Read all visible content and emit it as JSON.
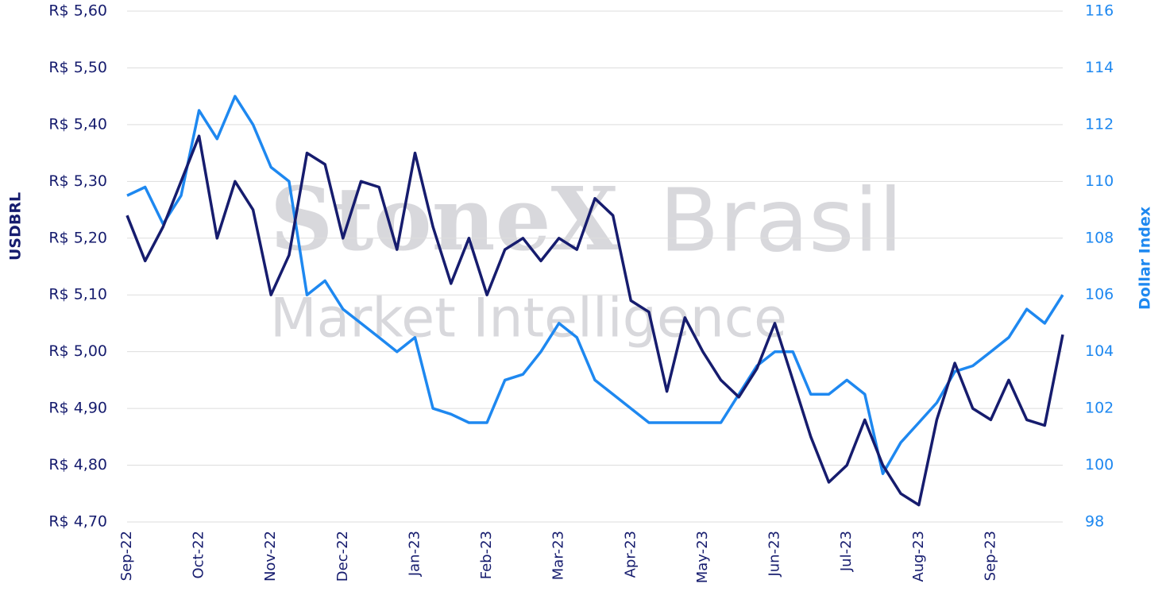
{
  "chart_data": {
    "type": "line",
    "y_axis_label": "USDBRL",
    "y2_axis_label": "Dollar Index",
    "watermark": {
      "brand": "StoneX",
      "suffix": "Brasil",
      "tagline": "Market Intelligence"
    },
    "categories": [
      "Sep-22",
      null,
      null,
      null,
      "Oct-22",
      null,
      null,
      null,
      "Nov-22",
      null,
      null,
      null,
      "Dec-22",
      null,
      null,
      null,
      "Jan-23",
      null,
      null,
      null,
      "Feb-23",
      null,
      null,
      null,
      "Mar-23",
      null,
      null,
      null,
      "Apr-23",
      null,
      null,
      null,
      "May-23",
      null,
      null,
      null,
      "Jun-23",
      null,
      null,
      null,
      "Jul-23",
      null,
      null,
      null,
      "Aug-23",
      null,
      null,
      null,
      "Sep-23",
      null,
      null,
      null,
      null
    ],
    "series": [
      {
        "color": "#161c6e",
        "values": [
          5.24,
          5.16,
          5.22,
          5.3,
          5.38,
          5.2,
          5.3,
          5.25,
          5.1,
          5.17,
          5.35,
          5.33,
          5.2,
          5.3,
          5.29,
          5.18,
          5.35,
          5.22,
          5.12,
          5.2,
          5.1,
          5.18,
          5.2,
          5.16,
          5.2,
          5.18,
          5.27,
          5.24,
          5.09,
          5.07,
          4.93,
          5.06,
          5.0,
          4.95,
          4.92,
          4.97,
          5.05,
          4.95,
          4.85,
          4.77,
          4.8,
          4.88,
          4.8,
          4.75,
          4.73,
          4.88,
          4.98,
          4.9,
          4.88,
          4.95,
          4.88,
          4.87,
          5.03
        ]
      },
      {
        "color": "#1e88f0",
        "axis": "y2",
        "values": [
          109.5,
          109.8,
          108.5,
          109.5,
          112.5,
          111.5,
          113,
          112,
          110.5,
          110,
          106,
          106.5,
          105.5,
          105,
          104.5,
          104,
          104.5,
          102,
          101.8,
          101.5,
          101.5,
          103,
          103.2,
          104,
          105,
          104.5,
          103,
          102.5,
          102,
          101.5,
          101.5,
          101.5,
          101.5,
          101.5,
          102.5,
          103.5,
          104,
          104,
          102.5,
          102.5,
          103,
          102.5,
          99.7,
          100.8,
          101.5,
          102.2,
          103.3,
          103.5,
          104,
          104.5,
          105.5,
          105,
          106
        ]
      }
    ],
    "ylim": [
      4.7,
      5.6
    ],
    "yticks": [
      {
        "value": 4.7,
        "label": "R$ 4,70"
      },
      {
        "value": 4.8,
        "label": "R$ 4,80"
      },
      {
        "value": 4.9,
        "label": "R$ 4,90"
      },
      {
        "value": 5.0,
        "label": "R$ 5,00"
      },
      {
        "value": 5.1,
        "label": "R$ 5,10"
      },
      {
        "value": 5.2,
        "label": "R$ 5,20"
      },
      {
        "value": 5.3,
        "label": "R$ 5,30"
      },
      {
        "value": 5.4,
        "label": "R$ 5,40"
      },
      {
        "value": 5.5,
        "label": "R$ 5,50"
      },
      {
        "value": 5.6,
        "label": "R$ 5,60"
      }
    ],
    "y2lim": [
      98,
      116
    ],
    "y2ticks": [
      98,
      100,
      102,
      104,
      106,
      108,
      110,
      112,
      114,
      116
    ],
    "grid": true
  }
}
